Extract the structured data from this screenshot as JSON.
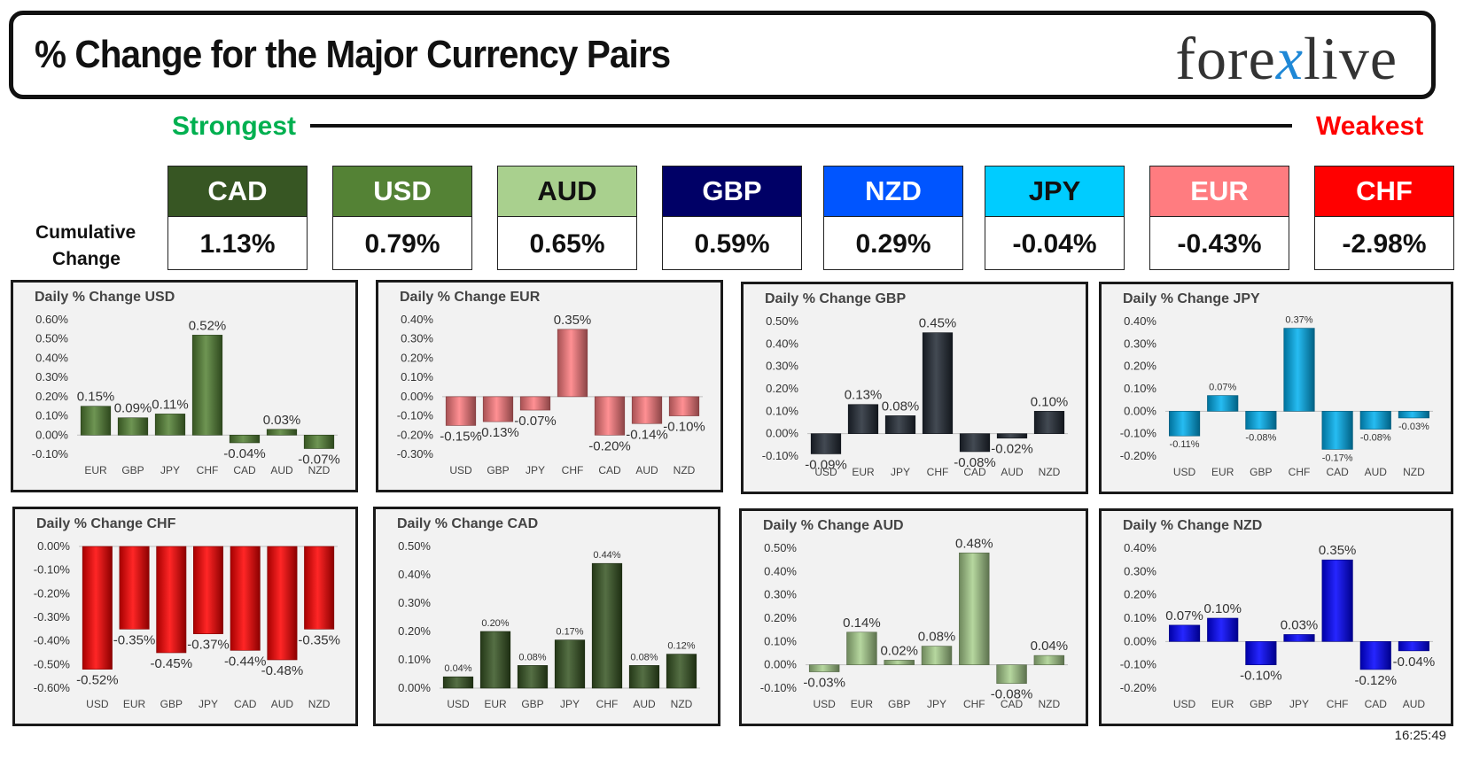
{
  "header": {
    "title": "% Change for the Major Currency Pairs",
    "logo_left": "fore",
    "logo_x": "x",
    "logo_right": "live"
  },
  "scale": {
    "strongest": "Strongest",
    "weakest": "Weakest",
    "cumulative_line1": "Cumulative",
    "cumulative_line2": "Change"
  },
  "colors": {
    "CAD": "#375623",
    "USD": "#548235",
    "AUD": "#a9d08e",
    "GBP": "#000066",
    "NZD": "#0055ff",
    "JPY": "#00ccff",
    "EUR": "#ff7c80",
    "CHF": "#ff0000"
  },
  "tiles": [
    {
      "currency": "CAD",
      "change": "1.13%",
      "text_color": "#ffffff"
    },
    {
      "currency": "USD",
      "change": "0.79%",
      "text_color": "#ffffff"
    },
    {
      "currency": "AUD",
      "change": "0.65%",
      "text_color": "#111111"
    },
    {
      "currency": "GBP",
      "change": "0.59%",
      "text_color": "#ffffff"
    },
    {
      "currency": "NZD",
      "change": "0.29%",
      "text_color": "#ffffff"
    },
    {
      "currency": "JPY",
      "change": "-0.04%",
      "text_color": "#111111"
    },
    {
      "currency": "EUR",
      "change": "-0.43%",
      "text_color": "#ffffff"
    },
    {
      "currency": "CHF",
      "change": "-2.98%",
      "text_color": "#ffffff"
    }
  ],
  "chart_data": [
    {
      "type": "bar",
      "title": "Daily % Change USD",
      "color": "#548235",
      "categories": [
        "EUR",
        "GBP",
        "JPY",
        "CHF",
        "CAD",
        "AUD",
        "NZD"
      ],
      "values": [
        0.15,
        0.09,
        0.11,
        0.52,
        -0.04,
        0.03,
        -0.07
      ],
      "labels": [
        "0.15%",
        "0.09%",
        "0.11%",
        "0.52%",
        "-0.04%",
        "0.03%",
        "-0.07%"
      ],
      "ylim": [
        -0.1,
        0.6
      ],
      "yticks": [
        "0.60%",
        "0.50%",
        "0.40%",
        "0.30%",
        "0.20%",
        "0.10%",
        "0.00%",
        "-0.10%"
      ],
      "label_size": "big"
    },
    {
      "type": "bar",
      "title": "Daily % Change EUR",
      "color": "#ff7c80",
      "categories": [
        "USD",
        "GBP",
        "JPY",
        "CHF",
        "CAD",
        "AUD",
        "NZD"
      ],
      "values": [
        -0.15,
        -0.13,
        -0.07,
        0.35,
        -0.2,
        -0.14,
        -0.1
      ],
      "labels": [
        "-0.15%",
        "-0.13%",
        "-0.07%",
        "0.35%",
        "-0.20%",
        "-0.14%",
        "-0.10%"
      ],
      "ylim": [
        -0.3,
        0.4
      ],
      "yticks": [
        "0.40%",
        "0.30%",
        "0.20%",
        "0.10%",
        "0.00%",
        "-0.10%",
        "-0.20%",
        "-0.30%"
      ],
      "label_size": "big"
    },
    {
      "type": "bar",
      "title": "Daily % Change GBP",
      "color": "#222a35",
      "categories": [
        "USD",
        "EUR",
        "JPY",
        "CHF",
        "CAD",
        "AUD",
        "NZD"
      ],
      "values": [
        -0.09,
        0.13,
        0.08,
        0.45,
        -0.08,
        -0.02,
        0.1
      ],
      "labels": [
        "-0.09%",
        "0.13%",
        "0.08%",
        "0.45%",
        "-0.08%",
        "-0.02%",
        "0.10%"
      ],
      "ylim": [
        -0.1,
        0.5
      ],
      "yticks": [
        "0.50%",
        "0.40%",
        "0.30%",
        "0.20%",
        "0.10%",
        "0.00%",
        "-0.10%"
      ],
      "label_size": "big"
    },
    {
      "type": "bar",
      "title": "Daily % Change JPY",
      "color": "#00b0f0",
      "categories": [
        "USD",
        "EUR",
        "GBP",
        "CHF",
        "CAD",
        "AUD",
        "NZD"
      ],
      "values": [
        -0.11,
        0.07,
        -0.08,
        0.37,
        -0.17,
        -0.08,
        -0.03
      ],
      "labels": [
        "-0.11%",
        "0.07%",
        "-0.08%",
        "0.37%",
        "-0.17%",
        "-0.08%",
        "-0.03%"
      ],
      "ylim": [
        -0.2,
        0.4
      ],
      "yticks": [
        "0.40%",
        "0.30%",
        "0.20%",
        "0.10%",
        "0.00%",
        "-0.10%",
        "-0.20%"
      ],
      "label_size": "small"
    },
    {
      "type": "bar",
      "title": "Daily % Change CHF",
      "color": "#ff0000",
      "categories": [
        "USD",
        "EUR",
        "GBP",
        "JPY",
        "CAD",
        "AUD",
        "NZD"
      ],
      "values": [
        -0.52,
        -0.35,
        -0.45,
        -0.37,
        -0.44,
        -0.48,
        -0.35
      ],
      "labels": [
        "-0.52%",
        "-0.35%",
        "-0.45%",
        "-0.37%",
        "-0.44%",
        "-0.48%",
        "-0.35%"
      ],
      "ylim": [
        -0.6,
        0.0
      ],
      "yticks": [
        "0.00%",
        "-0.10%",
        "-0.20%",
        "-0.30%",
        "-0.40%",
        "-0.50%",
        "-0.60%"
      ],
      "label_size": "big"
    },
    {
      "type": "bar",
      "title": "Daily % Change CAD",
      "color": "#375623",
      "categories": [
        "USD",
        "EUR",
        "GBP",
        "JPY",
        "CHF",
        "AUD",
        "NZD"
      ],
      "values": [
        0.04,
        0.2,
        0.08,
        0.17,
        0.44,
        0.08,
        0.12
      ],
      "labels": [
        "0.04%",
        "0.20%",
        "0.08%",
        "0.17%",
        "0.44%",
        "0.08%",
        "0.12%"
      ],
      "ylim": [
        0.0,
        0.5
      ],
      "yticks": [
        "0.50%",
        "0.40%",
        "0.30%",
        "0.20%",
        "0.10%",
        "0.00%"
      ],
      "label_size": "small"
    },
    {
      "type": "bar",
      "title": "Daily % Change AUD",
      "color": "#a9d08e",
      "categories": [
        "USD",
        "EUR",
        "GBP",
        "JPY",
        "CHF",
        "CAD",
        "NZD"
      ],
      "values": [
        -0.03,
        0.14,
        0.02,
        0.08,
        0.48,
        -0.08,
        0.04
      ],
      "labels": [
        "-0.03%",
        "0.14%",
        "0.02%",
        "0.08%",
        "0.48%",
        "-0.08%",
        "0.04%"
      ],
      "ylim": [
        -0.1,
        0.5
      ],
      "yticks": [
        "0.50%",
        "0.40%",
        "0.30%",
        "0.20%",
        "0.10%",
        "0.00%",
        "-0.10%"
      ],
      "label_size": "big"
    },
    {
      "type": "bar",
      "title": "Daily % Change NZD",
      "color": "#0000ff",
      "categories": [
        "USD",
        "EUR",
        "GBP",
        "JPY",
        "CHF",
        "CAD",
        "AUD"
      ],
      "values": [
        0.07,
        0.1,
        -0.1,
        0.03,
        0.35,
        -0.12,
        -0.04
      ],
      "labels": [
        "0.07%",
        "0.10%",
        "-0.10%",
        "0.03%",
        "0.35%",
        "-0.12%",
        "-0.04%"
      ],
      "ylim": [
        -0.2,
        0.4
      ],
      "yticks": [
        "0.40%",
        "0.30%",
        "0.20%",
        "0.10%",
        "0.00%",
        "-0.10%",
        "-0.20%"
      ],
      "label_size": "big"
    }
  ],
  "timestamp": "16:25:49"
}
